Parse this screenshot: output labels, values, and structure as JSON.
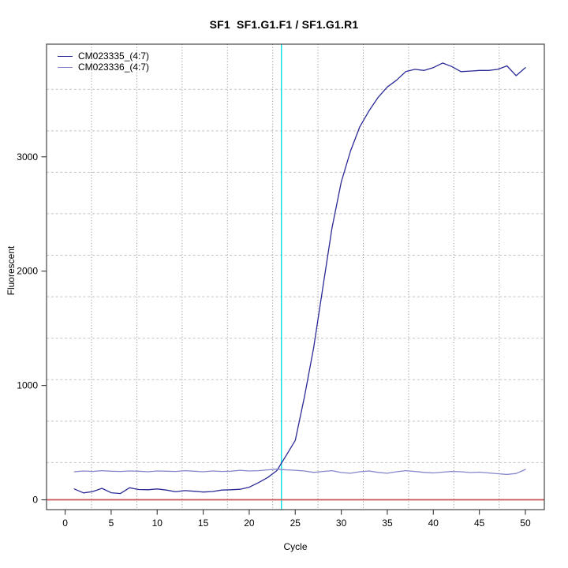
{
  "chart_data": {
    "type": "line",
    "title": "SF1  SF1.G1.F1 / SF1.G1.R1",
    "xlabel": "Cycle",
    "ylabel": "Fluorescent",
    "xlim": [
      -2.02,
      52.06
    ],
    "ylim": [
      -86,
      3985
    ],
    "x_ticks": [
      0,
      5,
      10,
      15,
      20,
      25,
      30,
      35,
      40,
      45,
      50
    ],
    "y_ticks": [
      0,
      1000,
      2000,
      3000
    ],
    "x": [
      1,
      2,
      3,
      4,
      5,
      6,
      7,
      8,
      9,
      10,
      11,
      12,
      13,
      14,
      15,
      16,
      17,
      18,
      19,
      20,
      21,
      22,
      23,
      24,
      25,
      26,
      27,
      28,
      29,
      30,
      31,
      32,
      33,
      34,
      35,
      36,
      37,
      38,
      39,
      40,
      41,
      42,
      43,
      44,
      45,
      46,
      47,
      48,
      49,
      50
    ],
    "series": [
      {
        "name": "CM023335_(4:7)",
        "color": "#2a2a96",
        "values": [
          95,
          60,
          72,
          100,
          62,
          55,
          105,
          90,
          88,
          95,
          85,
          70,
          80,
          75,
          68,
          72,
          85,
          88,
          92,
          110,
          150,
          195,
          255,
          385,
          520,
          900,
          1330,
          1860,
          2380,
          2780,
          3050,
          3260,
          3400,
          3520,
          3610,
          3670,
          3745,
          3765,
          3755,
          3780,
          3820,
          3790,
          3745,
          3750,
          3755,
          3755,
          3765,
          3795,
          3710,
          3780
        ]
      },
      {
        "name": "CM023336_(4:7)",
        "color": "#8585cb",
        "values": [
          245,
          252,
          248,
          255,
          250,
          248,
          252,
          250,
          245,
          252,
          250,
          248,
          255,
          250,
          245,
          252,
          248,
          250,
          258,
          252,
          255,
          262,
          268,
          262,
          258,
          252,
          240,
          248,
          255,
          238,
          232,
          245,
          252,
          240,
          232,
          245,
          255,
          248,
          240,
          235,
          242,
          248,
          245,
          238,
          242,
          235,
          228,
          222,
          230,
          265
        ]
      }
    ],
    "threshold_line": {
      "cycle": 23.5,
      "color": "#00dfe9"
    },
    "zero_line": {
      "value": 0,
      "color": "#cd5757"
    },
    "grid": {
      "x_positions": [
        2.87,
        7.79,
        12.71,
        17.63,
        22.55,
        27.47,
        32.39,
        37.31,
        42.23,
        47.15
      ],
      "y_positions": [
        325,
        688,
        1051,
        1413,
        1776,
        2139,
        2502,
        2865,
        3227,
        3590
      ],
      "x_style": "dotted",
      "y_style": "dashed",
      "x_color": "#878787",
      "y_color": "#c2c2c2"
    },
    "legend_position": "top-left",
    "axis_color": "#454545"
  }
}
